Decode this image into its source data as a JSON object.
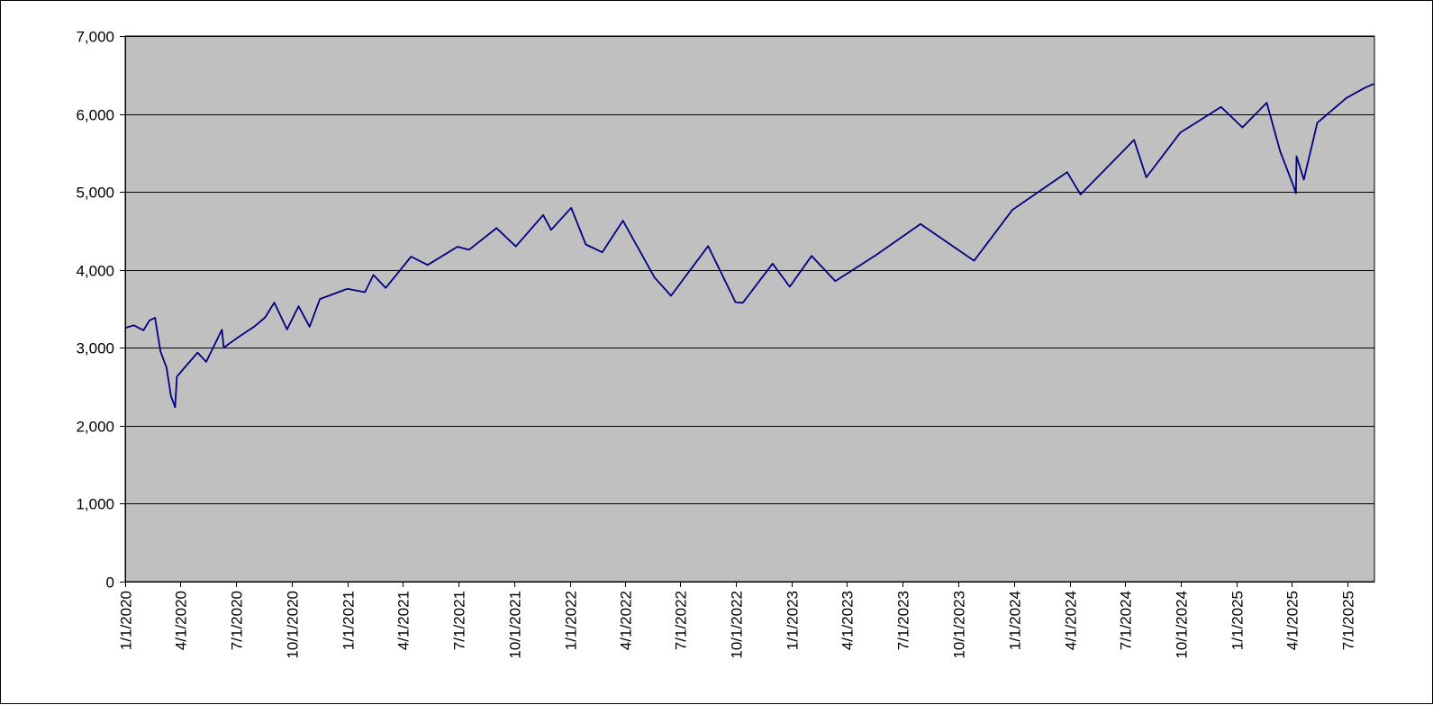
{
  "chart_data": {
    "type": "line",
    "title": "",
    "xlabel": "",
    "ylabel": "",
    "ylim": [
      0,
      7000
    ],
    "xlim": [
      "2020-01-01",
      "2025-08-15"
    ],
    "yticks": [
      0,
      1000,
      2000,
      3000,
      4000,
      5000,
      6000,
      7000
    ],
    "ytick_labels": [
      "0",
      "1,000",
      "2,000",
      "3,000",
      "4,000",
      "5,000",
      "6,000",
      "7,000"
    ],
    "xticks": [
      "2020-01-01",
      "2020-04-01",
      "2020-07-01",
      "2020-10-01",
      "2021-01-01",
      "2021-04-01",
      "2021-07-01",
      "2021-10-01",
      "2022-01-01",
      "2022-04-01",
      "2022-07-01",
      "2022-10-01",
      "2023-01-01",
      "2023-04-01",
      "2023-07-01",
      "2023-10-01",
      "2024-01-01",
      "2024-04-01",
      "2024-07-01",
      "2024-10-01",
      "2025-01-01",
      "2025-04-01",
      "2025-07-01"
    ],
    "xtick_labels": [
      "1/1/2020",
      "4/1/2020",
      "7/1/2020",
      "10/1/2020",
      "1/1/2021",
      "4/1/2021",
      "7/1/2021",
      "10/1/2021",
      "1/1/2022",
      "4/1/2022",
      "7/1/2022",
      "10/1/2022",
      "1/1/2023",
      "4/1/2023",
      "7/1/2023",
      "10/1/2023",
      "1/1/2024",
      "4/1/2024",
      "7/1/2024",
      "10/1/2024",
      "1/1/2025",
      "4/1/2025",
      "7/1/2025"
    ],
    "grid": "horizontal",
    "legend": "none",
    "colors": {
      "line": "#000080",
      "plot_background": "#c0c0c0",
      "gridline": "#000000",
      "axis": "#000000"
    },
    "series": [
      {
        "x": [
          "2020-01-02",
          "2020-01-15",
          "2020-01-31",
          "2020-02-10",
          "2020-02-19",
          "2020-02-28",
          "2020-03-09",
          "2020-03-16",
          "2020-03-23",
          "2020-03-26",
          "2020-04-08",
          "2020-04-29",
          "2020-05-13",
          "2020-06-08",
          "2020-06-11",
          "2020-07-01",
          "2020-07-31",
          "2020-08-18",
          "2020-09-02",
          "2020-09-23",
          "2020-10-12",
          "2020-10-30",
          "2020-11-16",
          "2020-12-31",
          "2021-01-29",
          "2021-02-12",
          "2021-03-04",
          "2021-04-15",
          "2021-05-12",
          "2021-06-30",
          "2021-07-19",
          "2021-08-31",
          "2021-09-02",
          "2021-10-04",
          "2021-11-18",
          "2021-12-01",
          "2022-01-03",
          "2022-01-27",
          "2022-02-23",
          "2022-03-29",
          "2022-05-20",
          "2022-06-16",
          "2022-08-16",
          "2022-09-30",
          "2022-10-12",
          "2022-11-30",
          "2022-12-28",
          "2023-02-02",
          "2023-03-13",
          "2023-05-19",
          "2023-07-31",
          "2023-10-27",
          "2023-12-29",
          "2024-03-28",
          "2024-04-19",
          "2024-07-16",
          "2024-08-05",
          "2024-09-30",
          "2024-12-06",
          "2025-01-10",
          "2025-02-19",
          "2025-03-13",
          "2025-04-04",
          "2025-04-08",
          "2025-04-09",
          "2025-04-21",
          "2025-05-13",
          "2025-06-30",
          "2025-07-31",
          "2025-08-14"
        ],
        "values": [
          3257,
          3289,
          3225,
          3352,
          3386,
          2954,
          2746,
          2386,
          2237,
          2630,
          2749,
          2939,
          2820,
          3232,
          3002,
          3115,
          3271,
          3390,
          3580,
          3237,
          3534,
          3270,
          3626,
          3756,
          3714,
          3934,
          3768,
          4170,
          4063,
          4297,
          4258,
          4522,
          4537,
          4300,
          4704,
          4513,
          4796,
          4326,
          4225,
          4631,
          3901,
          3667,
          4305,
          3586,
          3577,
          4080,
          3783,
          4179,
          3855,
          4191,
          4588,
          4117,
          4770,
          5254,
          4967,
          5667,
          5186,
          5762,
          6090,
          5827,
          6144,
          5522,
          5074,
          4983,
          5457,
          5158,
          5887,
          6205,
          6339,
          6385
        ]
      }
    ]
  }
}
